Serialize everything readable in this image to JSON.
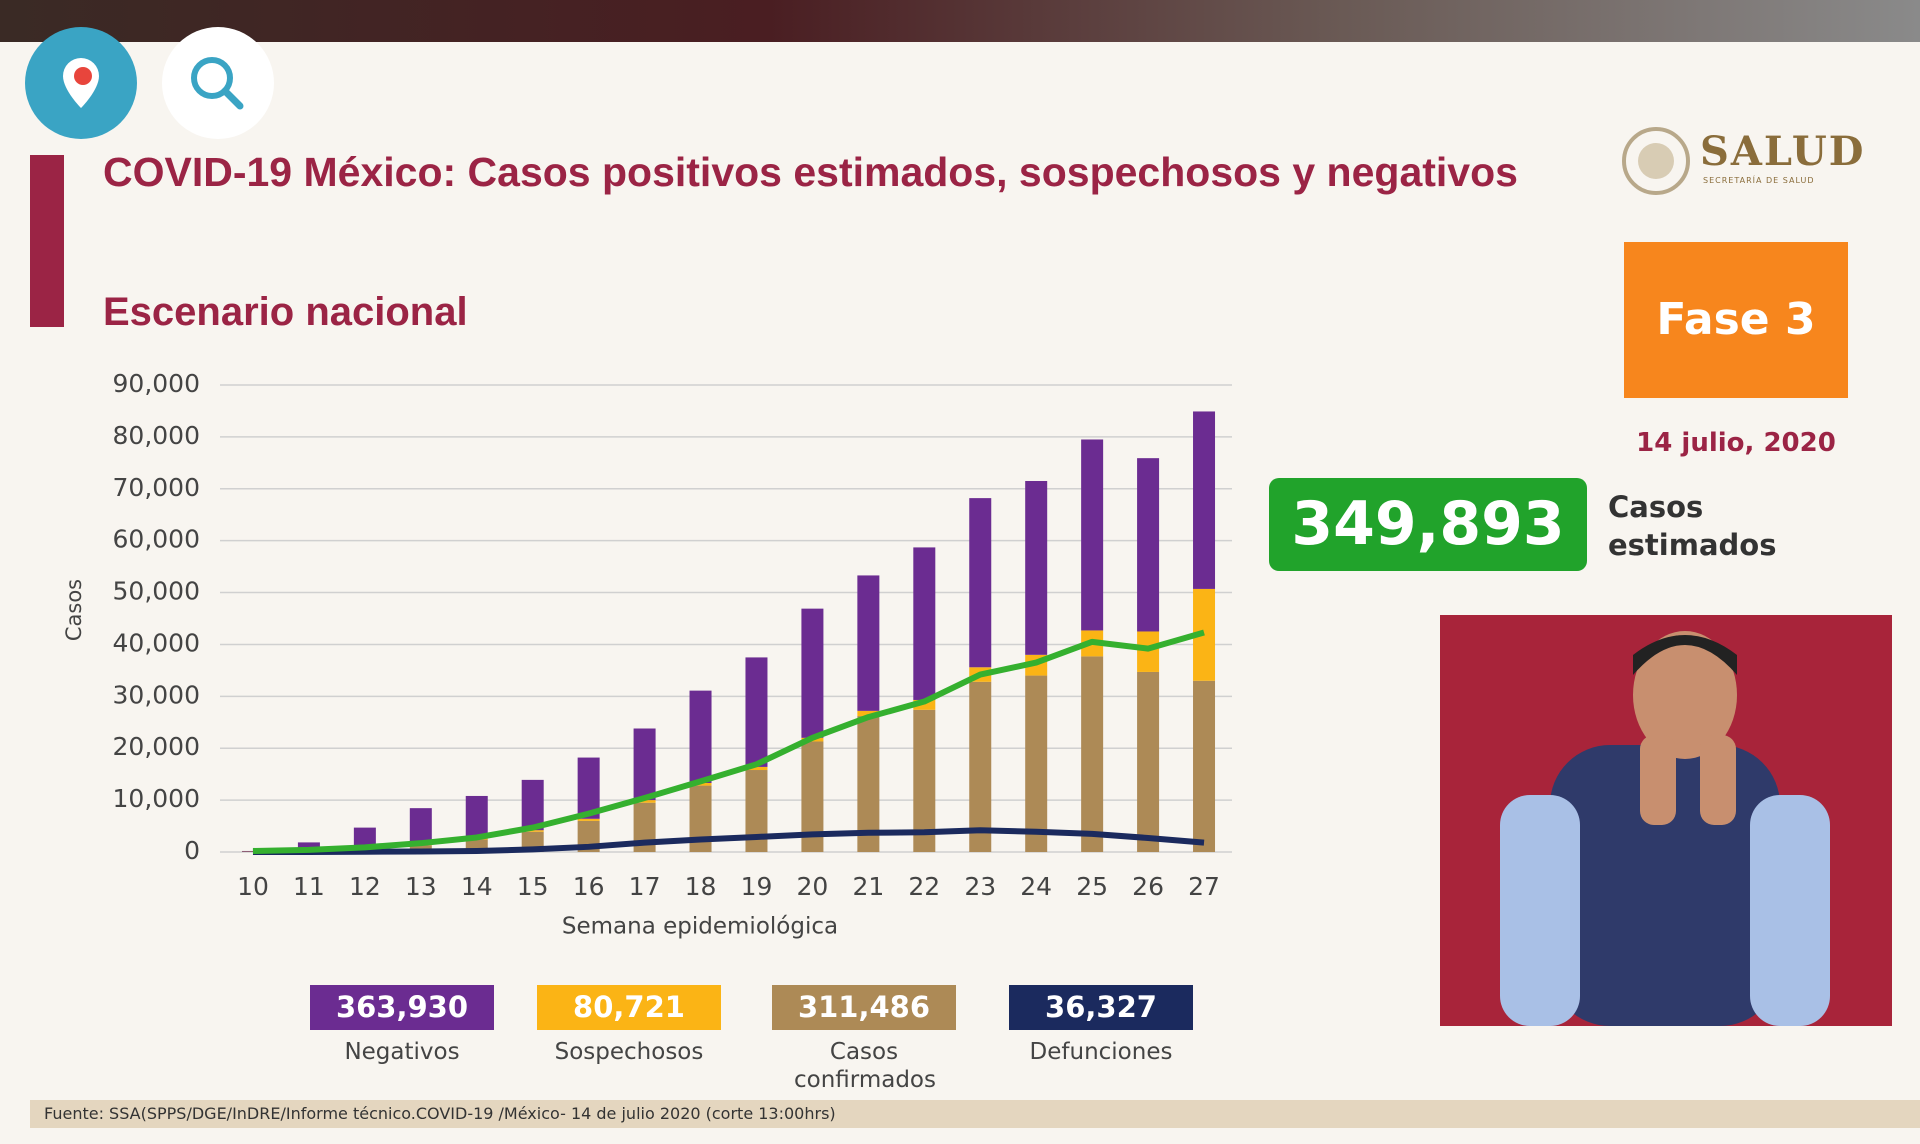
{
  "header": {
    "logo": "SALUD",
    "logo_sub": "SECRETARÍA DE SALUD",
    "phase": "Fase 3",
    "date": "14 julio, 2020"
  },
  "estimate": {
    "value": "349,893",
    "label": "Casos estimados"
  },
  "footer": "Fuente: SSA(SPPS/DGE/InDRE/Informe técnico.COVID-19 /México- 14 de julio 2020 (corte 13:00hrs)",
  "chart_data": {
    "type": "bar",
    "stacked": true,
    "title": "COVID-19 México: Casos positivos estimados, sospechosos y negativos",
    "subtitle": "Escenario nacional",
    "ylabel": "Casos",
    "xlabel": "Semana epidemiológica",
    "categories": [
      "10",
      "11",
      "12",
      "13",
      "14",
      "15",
      "16",
      "17",
      "18",
      "19",
      "20",
      "21",
      "22",
      "23",
      "24",
      "25",
      "26",
      "27"
    ],
    "series": [
      {
        "name": "Negativos",
        "type": "bar",
        "color": "#6b2c91",
        "total": {
          "value": 363930,
          "label": "363,930"
        },
        "values": [
          100,
          1500,
          3900,
          7000,
          8200,
          9700,
          11800,
          13800,
          17800,
          21100,
          24900,
          26100,
          29400,
          32600,
          33500,
          36800,
          33400,
          34200
        ]
      },
      {
        "name": "Sospechosos",
        "type": "bar",
        "color": "#fbb415",
        "total": {
          "value": 80721,
          "label": "80,721"
        },
        "values": [
          0,
          50,
          100,
          150,
          200,
          300,
          400,
          500,
          500,
          600,
          700,
          1000,
          1900,
          2800,
          4000,
          5000,
          7800,
          17700
        ]
      },
      {
        "name": "Casos confirmados",
        "type": "bar",
        "color": "#ad8a56",
        "total": {
          "value": 311486,
          "label": "311,486"
        },
        "values": [
          100,
          300,
          700,
          1300,
          2400,
          3900,
          6000,
          9500,
          12800,
          15800,
          21300,
          26200,
          27400,
          32800,
          34000,
          37700,
          34700,
          33000
        ]
      },
      {
        "name": "Defunciones",
        "type": "line",
        "color": "#1b2a5e",
        "total": {
          "value": 36327,
          "label": "36,327"
        },
        "values": [
          0,
          0,
          50,
          100,
          200,
          500,
          1000,
          1800,
          2400,
          2900,
          3400,
          3700,
          3800,
          4200,
          3900,
          3500,
          2700,
          1800
        ]
      },
      {
        "type": "line",
        "color": "#35b02f",
        "values": [
          200,
          400,
          900,
          1700,
          2800,
          4700,
          7400,
          10400,
          13600,
          16900,
          22000,
          26000,
          29000,
          34200,
          36500,
          40500,
          39200,
          42300
        ]
      }
    ],
    "ylim": [
      0,
      90000
    ],
    "yticks": [
      0,
      {
        "value": 10000,
        "label": "10,000"
      },
      {
        "value": 20000,
        "label": "20,000"
      },
      {
        "value": 30000,
        "label": "30,000"
      },
      {
        "value": 40000,
        "label": "40,000"
      },
      {
        "value": 50000,
        "label": "50,000"
      },
      {
        "value": 60000,
        "label": "60,000"
      },
      {
        "value": 70000,
        "label": "70,000"
      },
      {
        "value": 80000,
        "label": "80,000"
      },
      {
        "value": 90000,
        "label": "90,000"
      }
    ],
    "grid": true
  }
}
